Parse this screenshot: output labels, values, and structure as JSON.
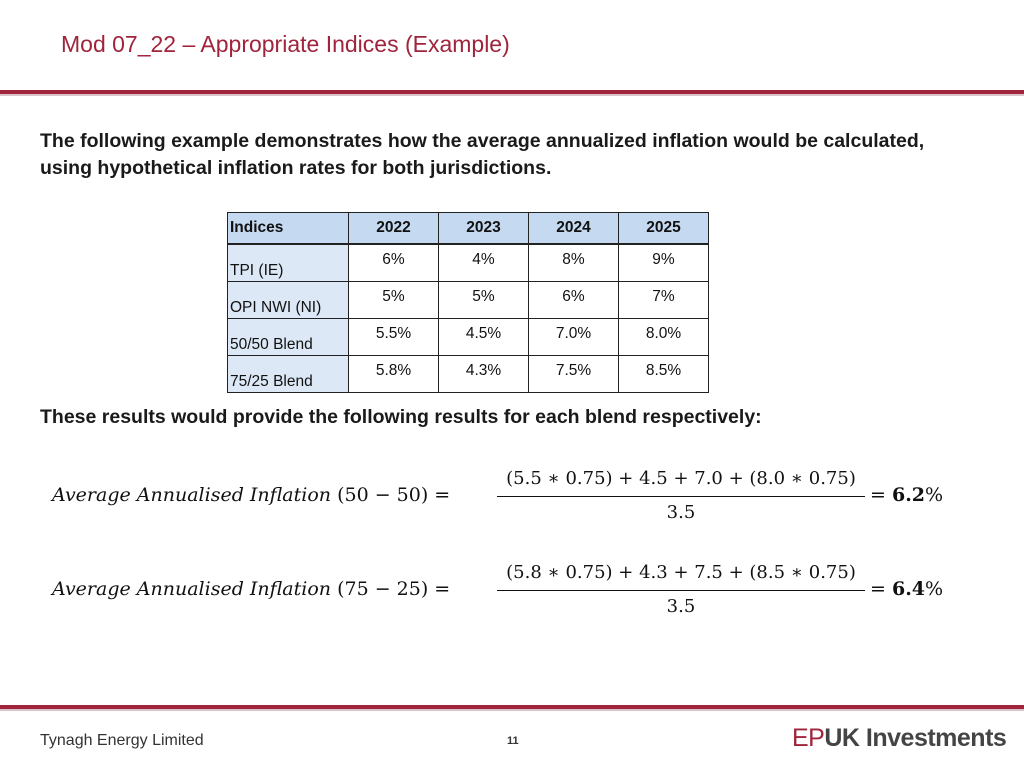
{
  "header": {
    "title": "Mod 07_22 – Appropriate Indices (Example)"
  },
  "intro": "The following example demonstrates how the average annualized inflation would be calculated, using hypothetical inflation rates for both jurisdictions.",
  "table": {
    "columns": [
      "Indices",
      "2022",
      "2023",
      "2024",
      "2025"
    ],
    "rows": [
      {
        "label": "TPI (IE)",
        "values": [
          "6%",
          "4%",
          "8%",
          "9%"
        ]
      },
      {
        "label": "OPI NWI (NI)",
        "values": [
          "5%",
          "5%",
          "6%",
          "7%"
        ]
      },
      {
        "label": "50/50 Blend",
        "values": [
          "5.5%",
          "4.5%",
          "7.0%",
          "8.0%"
        ]
      },
      {
        "label": "75/25 Blend",
        "values": [
          "5.8%",
          "4.3%",
          "7.5%",
          "8.5%"
        ]
      }
    ]
  },
  "results_heading": "These results would provide the following results for each blend respectively:",
  "formulas": [
    {
      "lhs": "Average Annualised Inflation",
      "lhs_arg": "(50 − 50) =",
      "numerator": "(5.5 ∗ 0.75) + 4.5 + 7.0 + (8.0 ∗ 0.75)",
      "denominator": "3.5",
      "equals": "=",
      "result": "6.2",
      "unit": "%"
    },
    {
      "lhs": "Average Annualised Inflation",
      "lhs_arg": "(75 − 25) =",
      "numerator": "(5.8 ∗ 0.75) + 4.3 + 7.5 + (8.5 ∗ 0.75)",
      "denominator": "3.5",
      "equals": "=",
      "result": "6.4",
      "unit": "%"
    }
  ],
  "footer": {
    "company": "Tynagh Energy Limited",
    "page_number": "11",
    "logo_ep": "EP",
    "logo_rest": "UK Investments"
  },
  "colors": {
    "accent": "#a0243b",
    "table_header": "#c5d9f0",
    "table_label": "#dce8f6"
  }
}
